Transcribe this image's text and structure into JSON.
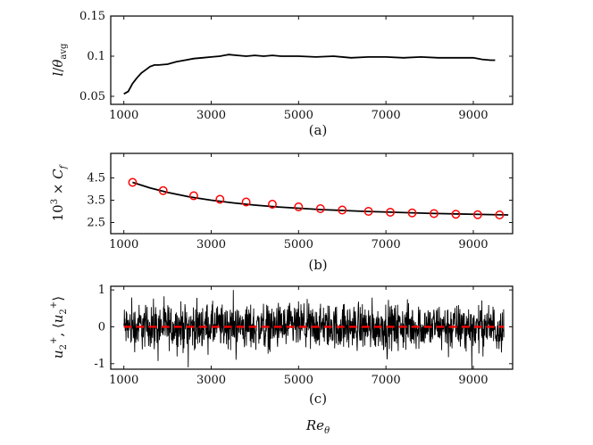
{
  "chart_data": [
    {
      "type": "line",
      "panel_label": "(a)",
      "ylabel": "l/θavg",
      "xlim": [
        700,
        9900
      ],
      "ylim": [
        0.04,
        0.15
      ],
      "xticks": [
        1000,
        3000,
        5000,
        7000,
        9000
      ],
      "yticks": [
        0.05,
        0.1,
        0.15
      ],
      "ytick_labels": [
        "0.05",
        "0.1",
        "0.15"
      ],
      "series": [
        {
          "color": "#000000",
          "x": [
            1000,
            1100,
            1200,
            1300,
            1400,
            1500,
            1600,
            1700,
            1800,
            2000,
            2200,
            2400,
            2600,
            2800,
            3000,
            3200,
            3400,
            3600,
            3800,
            4000,
            4200,
            4400,
            4600,
            4800,
            5000,
            5400,
            5800,
            6200,
            6600,
            7000,
            7400,
            7800,
            8200,
            8600,
            9000,
            9200,
            9400,
            9500
          ],
          "y": [
            0.053,
            0.056,
            0.066,
            0.073,
            0.079,
            0.083,
            0.087,
            0.089,
            0.089,
            0.09,
            0.093,
            0.095,
            0.097,
            0.098,
            0.099,
            0.1,
            0.102,
            0.101,
            0.1,
            0.101,
            0.1,
            0.101,
            0.1,
            0.1,
            0.1,
            0.099,
            0.1,
            0.098,
            0.099,
            0.099,
            0.098,
            0.099,
            0.098,
            0.098,
            0.098,
            0.096,
            0.095,
            0.095
          ]
        }
      ]
    },
    {
      "type": "line",
      "panel_label": "(b)",
      "ylabel": "10³ × Cf",
      "xlim": [
        700,
        9900
      ],
      "ylim": [
        2.0,
        5.6
      ],
      "xticks": [
        1000,
        3000,
        5000,
        7000,
        9000
      ],
      "yticks": [
        2.5,
        3.5,
        4.5
      ],
      "ytick_labels": [
        "2.5",
        "3.5",
        "4.5"
      ],
      "series": [
        {
          "color": "#000000",
          "x": [
            1200,
            1600,
            2000,
            2500,
            3000,
            3500,
            4000,
            4500,
            5000,
            5500,
            6000,
            6500,
            7000,
            7500,
            8000,
            8500,
            9000,
            9500,
            9800
          ],
          "y": [
            4.3,
            4.05,
            3.85,
            3.65,
            3.5,
            3.38,
            3.28,
            3.2,
            3.14,
            3.08,
            3.04,
            3.0,
            2.97,
            2.94,
            2.91,
            2.89,
            2.87,
            2.85,
            2.84
          ]
        },
        {
          "color": "#ff0000",
          "marker": "circle",
          "x": [
            1200,
            1900,
            2600,
            3200,
            3800,
            4400,
            5000,
            5500,
            6000,
            6600,
            7100,
            7600,
            8100,
            8600,
            9100,
            9600
          ],
          "y": [
            4.3,
            3.93,
            3.7,
            3.54,
            3.42,
            3.32,
            3.2,
            3.12,
            3.06,
            3.0,
            2.96,
            2.93,
            2.9,
            2.87,
            2.85,
            2.84
          ]
        }
      ]
    },
    {
      "type": "line",
      "panel_label": "(c)",
      "ylabel": "u₂⁺, ⟨u₂⁺⟩",
      "xlabel": "Reθ",
      "xlim": [
        700,
        9900
      ],
      "ylim": [
        -1.15,
        1.1
      ],
      "xticks": [
        1000,
        3000,
        5000,
        7000,
        9000
      ],
      "yticks": [
        -1,
        0,
        1
      ],
      "ytick_labels": [
        "-1",
        "0",
        "1"
      ],
      "series": [
        {
          "color": "#000000",
          "signal": "noise",
          "x_range": [
            1000,
            9700
          ],
          "amplitude_range": [
            -1.2,
            1.05
          ]
        },
        {
          "color": "#ff0000",
          "style": "dashed",
          "x": [
            1000,
            9700
          ],
          "y": [
            0,
            0
          ]
        }
      ]
    }
  ]
}
